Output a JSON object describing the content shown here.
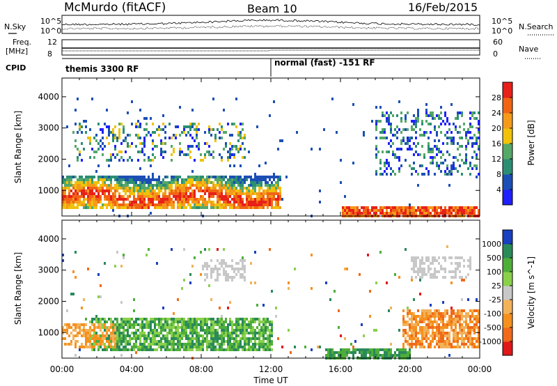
{
  "header": {
    "station": "McMurdo (fitACF)",
    "beam": "Beam 10",
    "date": "16/Feb/2015"
  },
  "strip": {
    "nsky_label": "N.Sky",
    "nsearch_label": "N.Search",
    "freq_label": "Freq.",
    "freq_unit": "[MHz]",
    "nave_label": "Nave",
    "cpid_label": "CPID",
    "left_ticks_top": [
      "10^5",
      "10^0"
    ],
    "right_ticks_top": [
      "10^5",
      "10^0"
    ],
    "left_ticks_freq": [
      "12",
      "8"
    ],
    "right_ticks_nave": [
      "60",
      "0"
    ],
    "cpid_segments": [
      {
        "text": "themis 3300 RF",
        "start_hour": 0
      },
      {
        "text": "normal (fast) -151 RF",
        "start_hour": 12
      }
    ]
  },
  "chart_data": [
    {
      "type": "heatmap",
      "title": "",
      "xlabel": "Time UT",
      "ylabel": "Slant Range [km]",
      "xlim": [
        0,
        24
      ],
      "ylim": [
        180,
        4600
      ],
      "x_ticks": [
        "00:00",
        "04:00",
        "08:00",
        "12:00",
        "16:00",
        "20:00",
        "00:00"
      ],
      "y_ticks": [
        1000,
        2000,
        3000,
        4000
      ],
      "colorbar": {
        "label": "Power [dB]",
        "ticks": [
          4,
          8,
          12,
          16,
          20,
          24,
          28
        ],
        "range": [
          0,
          30
        ],
        "colors": [
          "#1f1fff",
          "#1c4fb5",
          "#2b8e73",
          "#55a868",
          "#f0c20a",
          "#f59a1a",
          "#f06414",
          "#e8201a"
        ]
      },
      "features": [
        {
          "name": "main echo band",
          "x": [
            0,
            12.5
          ],
          "range_km": [
            450,
            1500
          ],
          "power_db": [
            10,
            28
          ]
        },
        {
          "name": "lower range echo",
          "x": [
            16,
            24
          ],
          "range_km": [
            200,
            500
          ],
          "power_db": [
            20,
            28
          ]
        },
        {
          "name": "upper scatter",
          "x": [
            0.5,
            10.5
          ],
          "range_km": [
            2000,
            3200
          ],
          "power_db": [
            4,
            20
          ]
        },
        {
          "name": "late patches",
          "x": [
            18,
            24
          ],
          "range_km": [
            1500,
            3600
          ],
          "power_db": [
            4,
            16
          ]
        }
      ]
    },
    {
      "type": "heatmap",
      "title": "",
      "xlabel": "Time UT",
      "ylabel": "Slant Range [km]",
      "xlim": [
        0,
        24
      ],
      "ylim": [
        180,
        4600
      ],
      "x_ticks": [
        "00:00",
        "04:00",
        "08:00",
        "12:00",
        "16:00",
        "20:00",
        "00:00"
      ],
      "y_ticks": [
        1000,
        2000,
        3000,
        4000
      ],
      "colorbar": {
        "label": "Velocity [m s^-1]",
        "ticks": [
          "1000",
          "500",
          "100",
          "25",
          "-25",
          "-100",
          "-500",
          "-1000"
        ],
        "colors": [
          "#1a3fbf",
          "#2a8a5a",
          "#4fae3a",
          "#8ad04a",
          "#c8c8c8",
          "#f2b25a",
          "#f5901e",
          "#f06a1a",
          "#e01818"
        ]
      },
      "features": [
        {
          "name": "positive velocity band",
          "x": [
            1.5,
            12
          ],
          "range_km": [
            450,
            1500
          ],
          "velocity": [
            100,
            500
          ]
        },
        {
          "name": "negative velocity patches",
          "x": [
            0,
            3
          ],
          "range_km": [
            500,
            1300
          ],
          "velocity": [
            -500,
            -100
          ]
        },
        {
          "name": "low velocity upper echoes",
          "x": [
            8,
            10.5
          ],
          "range_km": [
            2700,
            3400
          ],
          "velocity": [
            -25,
            25
          ]
        },
        {
          "name": "negative velocity late",
          "x": [
            19.5,
            24
          ],
          "range_km": [
            500,
            1800
          ],
          "velocity": [
            -500,
            -100
          ]
        },
        {
          "name": "near-zero late high range",
          "x": [
            20,
            23.5
          ],
          "range_km": [
            2800,
            3500
          ],
          "velocity": [
            -25,
            25
          ]
        }
      ]
    }
  ]
}
